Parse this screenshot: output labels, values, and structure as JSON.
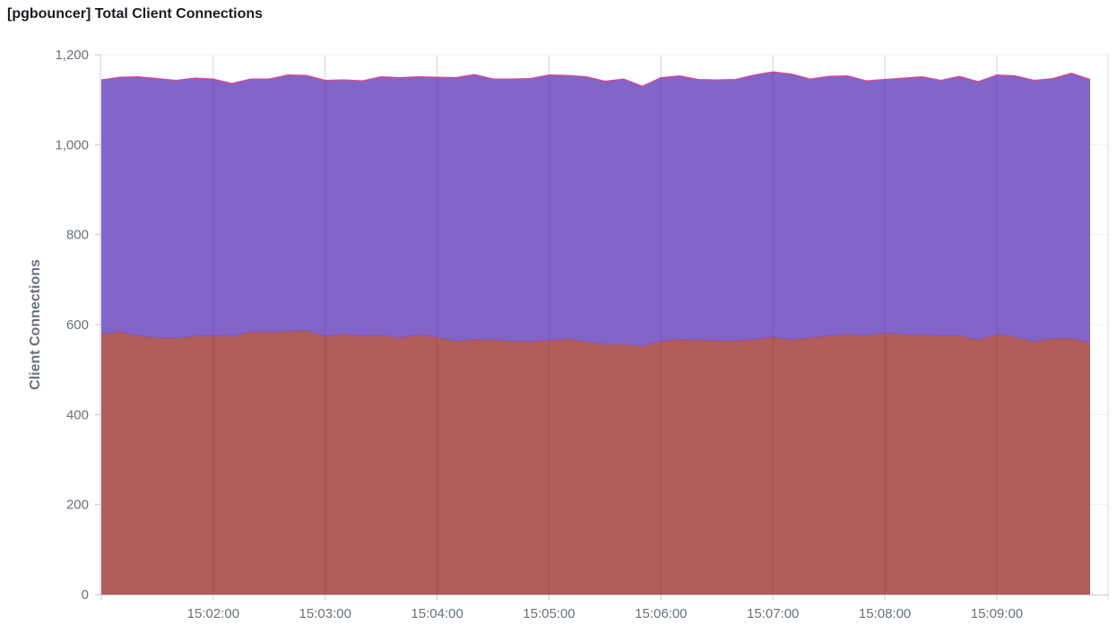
{
  "panel": {
    "title": "[pgbouncer] Total Client Connections"
  },
  "chart_data": {
    "type": "area",
    "stacked": true,
    "title": "[pgbouncer] Total Client Connections",
    "xlabel": "",
    "ylabel": "Client Connections",
    "ylim": [
      0,
      1200
    ],
    "yticks": [
      0,
      200,
      400,
      600,
      800,
      1000,
      1200
    ],
    "yticklabels": [
      "0",
      "200",
      "400",
      "600",
      "800",
      "1,000",
      "1,200"
    ],
    "x_start": "15:01:00",
    "x_step_seconds": 10,
    "xticks": [
      "15:02:00",
      "15:03:00",
      "15:04:00",
      "15:05:00",
      "15:06:00",
      "15:07:00",
      "15:08:00",
      "15:09:00"
    ],
    "grid": true,
    "legend": "none",
    "series": [
      {
        "color": "#b05c5a",
        "line_color": "#7a4fc7",
        "values": [
          580,
          585,
          576,
          572,
          571,
          575,
          576,
          575,
          585,
          584,
          586,
          588,
          575,
          580,
          575,
          577,
          572,
          578,
          573,
          564,
          568,
          567,
          564,
          563,
          566,
          569,
          563,
          557,
          557,
          553,
          564,
          568,
          567,
          565,
          565,
          568,
          574,
          567,
          572,
          576,
          579,
          577,
          582,
          579,
          578,
          576,
          577,
          567,
          579,
          574,
          563,
          570,
          570,
          560
        ]
      },
      {
        "color": "#8364c8",
        "line_color": "#e0468a",
        "values": [
          564,
          565,
          575,
          575,
          572,
          573,
          570,
          561,
          561,
          562,
          569,
          566,
          568,
          564,
          567,
          574,
          577,
          573,
          577,
          585,
          588,
          579,
          582,
          584,
          589,
          585,
          588,
          584,
          589,
          577,
          585,
          585,
          578,
          579,
          580,
          587,
          588,
          590,
          574,
          576,
          574,
          565,
          563,
          569,
          573,
          567,
          575,
          573,
          576,
          579,
          580,
          577,
          589,
          585
        ]
      }
    ]
  }
}
